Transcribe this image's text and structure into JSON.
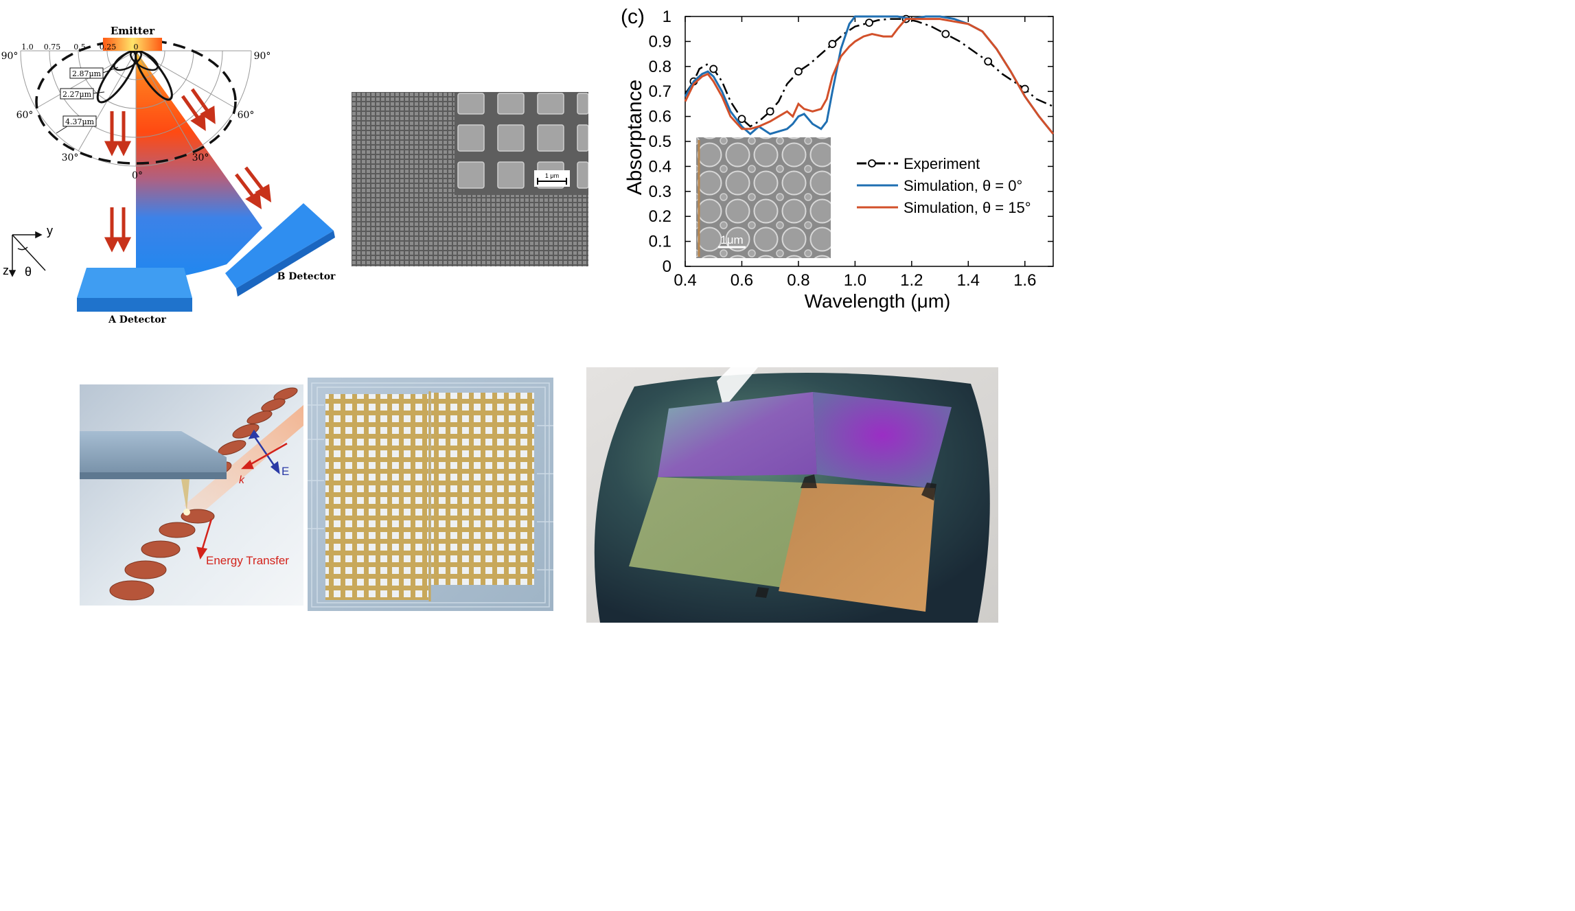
{
  "emission_panel": {
    "emitter_label": "Emitter",
    "radial_ticks": [
      "1.0",
      "0.75",
      "0.5",
      "0.25",
      "0"
    ],
    "angle_labels": {
      "left_90": "90°",
      "right_90": "90°",
      "left_60": "60°",
      "right_60": "60°",
      "left_30": "30°",
      "right_30": "30°",
      "zero": "0°"
    },
    "wavelength_labels": [
      "2.87μm",
      "2.27μm",
      "4.37μm"
    ],
    "axis_labels": {
      "y": "y",
      "z": "z",
      "theta": "θ"
    },
    "detector_a": "A Detector",
    "detector_b": "B Detector"
  },
  "sem_panel": {
    "scale_bar": "1 μm"
  },
  "chart_data": {
    "type": "line",
    "panel_label": "(c)",
    "xlabel": "Wavelength (μm)",
    "ylabel": "Absorptance",
    "xlim": [
      0.4,
      1.7
    ],
    "ylim": [
      0,
      1
    ],
    "x_ticks": [
      "0.4",
      "0.6",
      "0.8",
      "1.0",
      "1.2",
      "1.4",
      "1.6"
    ],
    "y_ticks": [
      "0",
      "0.1",
      "0.2",
      "0.3",
      "0.4",
      "0.5",
      "0.6",
      "0.7",
      "0.8",
      "0.9",
      "1"
    ],
    "legend_position": "right",
    "inset_scale_bar": "1μm",
    "series": [
      {
        "name": "Experiment",
        "color": "#000000",
        "x": [
          0.4,
          0.43,
          0.45,
          0.48,
          0.5,
          0.53,
          0.56,
          0.6,
          0.63,
          0.66,
          0.7,
          0.73,
          0.76,
          0.8,
          0.84,
          0.88,
          0.92,
          0.96,
          1.0,
          1.05,
          1.08,
          1.12,
          1.18,
          1.22,
          1.27,
          1.32,
          1.37,
          1.42,
          1.47,
          1.52,
          1.56,
          1.6,
          1.64,
          1.7
        ],
        "y": [
          0.69,
          0.74,
          0.79,
          0.81,
          0.79,
          0.74,
          0.66,
          0.59,
          0.56,
          0.58,
          0.62,
          0.66,
          0.73,
          0.78,
          0.81,
          0.85,
          0.89,
          0.93,
          0.96,
          0.975,
          0.985,
          0.99,
          0.99,
          0.98,
          0.96,
          0.93,
          0.9,
          0.86,
          0.82,
          0.77,
          0.74,
          0.71,
          0.67,
          0.64
        ]
      },
      {
        "name": "Simulation, θ = 0°",
        "color": "#1f6fb2",
        "x": [
          0.4,
          0.43,
          0.46,
          0.48,
          0.5,
          0.53,
          0.56,
          0.6,
          0.63,
          0.66,
          0.7,
          0.73,
          0.76,
          0.78,
          0.8,
          0.82,
          0.85,
          0.88,
          0.9,
          0.92,
          0.95,
          0.98,
          1.0,
          1.03,
          1.06,
          1.1,
          1.15,
          1.2,
          1.25,
          1.3,
          1.35,
          1.4,
          1.45,
          1.5,
          1.55,
          1.6,
          1.65,
          1.7
        ],
        "y": [
          0.68,
          0.74,
          0.77,
          0.78,
          0.76,
          0.7,
          0.62,
          0.56,
          0.53,
          0.56,
          0.53,
          0.54,
          0.55,
          0.57,
          0.6,
          0.61,
          0.57,
          0.55,
          0.58,
          0.7,
          0.87,
          0.97,
          1.0,
          1.0,
          1.0,
          1.0,
          1.0,
          0.99,
          1.0,
          1.0,
          0.99,
          0.97,
          0.94,
          0.87,
          0.78,
          0.68,
          0.6,
          0.53
        ]
      },
      {
        "name": "Simulation, θ = 15°",
        "color": "#d2502a",
        "x": [
          0.4,
          0.43,
          0.46,
          0.48,
          0.5,
          0.53,
          0.56,
          0.6,
          0.63,
          0.66,
          0.7,
          0.73,
          0.76,
          0.78,
          0.8,
          0.82,
          0.85,
          0.88,
          0.9,
          0.92,
          0.95,
          0.98,
          1.0,
          1.03,
          1.06,
          1.1,
          1.13,
          1.15,
          1.18,
          1.2,
          1.25,
          1.3,
          1.35,
          1.4,
          1.45,
          1.5,
          1.55,
          1.6,
          1.65,
          1.7
        ],
        "y": [
          0.66,
          0.73,
          0.76,
          0.77,
          0.74,
          0.68,
          0.6,
          0.55,
          0.55,
          0.56,
          0.58,
          0.6,
          0.62,
          0.6,
          0.65,
          0.63,
          0.62,
          0.63,
          0.67,
          0.76,
          0.84,
          0.88,
          0.9,
          0.92,
          0.93,
          0.92,
          0.92,
          0.95,
          0.99,
          0.99,
          0.99,
          0.99,
          0.98,
          0.97,
          0.94,
          0.87,
          0.78,
          0.68,
          0.6,
          0.53
        ]
      }
    ]
  },
  "photo_a": {
    "e_label": "E",
    "k_label": "k",
    "energy_label": "Energy Transfer"
  }
}
